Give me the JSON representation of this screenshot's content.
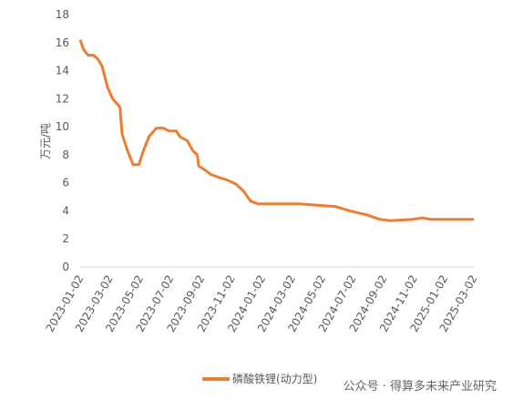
{
  "chart_data": {
    "type": "line",
    "y_label": "万元/吨",
    "x": [
      "2023-01-02",
      "2023-01-09",
      "2023-01-18",
      "2023-01-29",
      "2023-02-07",
      "2023-02-15",
      "2023-02-26",
      "2023-03-08",
      "2023-03-23",
      "2023-03-27",
      "2023-04-07",
      "2023-04-18",
      "2023-04-30",
      "2023-05-09",
      "2023-05-20",
      "2023-06-04",
      "2023-06-18",
      "2023-06-29",
      "2023-07-14",
      "2023-07-21",
      "2023-08-05",
      "2023-08-16",
      "2023-08-25",
      "2023-08-28",
      "2023-09-10",
      "2023-09-21",
      "2023-10-06",
      "2023-10-24",
      "2023-11-11",
      "2023-11-26",
      "2023-12-10",
      "2023-12-25",
      "2024-01-23",
      "2024-03-17",
      "2024-04-23",
      "2024-05-29",
      "2024-06-26",
      "2024-08-01",
      "2024-08-25",
      "2024-09-15",
      "2024-10-31",
      "2024-11-18",
      "2024-12-06",
      "2025-03-02"
    ],
    "series": [
      {
        "name": "磷酸铁锂(动力型)",
        "color": "#ed7d31",
        "values": [
          16.2,
          15.5,
          15.1,
          15.1,
          14.8,
          14.3,
          12.8,
          12.0,
          11.4,
          9.5,
          8.3,
          7.3,
          7.3,
          8.3,
          9.3,
          9.9,
          9.9,
          9.7,
          9.7,
          9.3,
          9.0,
          8.3,
          8.0,
          7.2,
          6.9,
          6.6,
          6.4,
          6.2,
          5.9,
          5.4,
          4.7,
          4.5,
          4.5,
          4.5,
          4.4,
          4.3,
          4.0,
          3.7,
          3.4,
          3.3,
          3.4,
          3.5,
          3.4,
          3.4
        ]
      }
    ],
    "xlim": [
      "2023-01-02",
      "2025-03-02"
    ],
    "xticks": [
      "2023-01-02",
      "2023-03-02",
      "2023-05-02",
      "2023-07-02",
      "2023-09-02",
      "2023-11-02",
      "2024-01-02",
      "2024-03-02",
      "2024-05-02",
      "2024-07-02",
      "2024-09-02",
      "2024-11-02",
      "2025-01-02",
      "2025-03-02"
    ],
    "ylim": [
      0,
      18
    ],
    "yticks": [
      0,
      2,
      4,
      6,
      8,
      10,
      12,
      14,
      16,
      18
    ],
    "grid": false,
    "legend": "bottom",
    "watermark": "公众号 · 得算多未来产业研究"
  }
}
